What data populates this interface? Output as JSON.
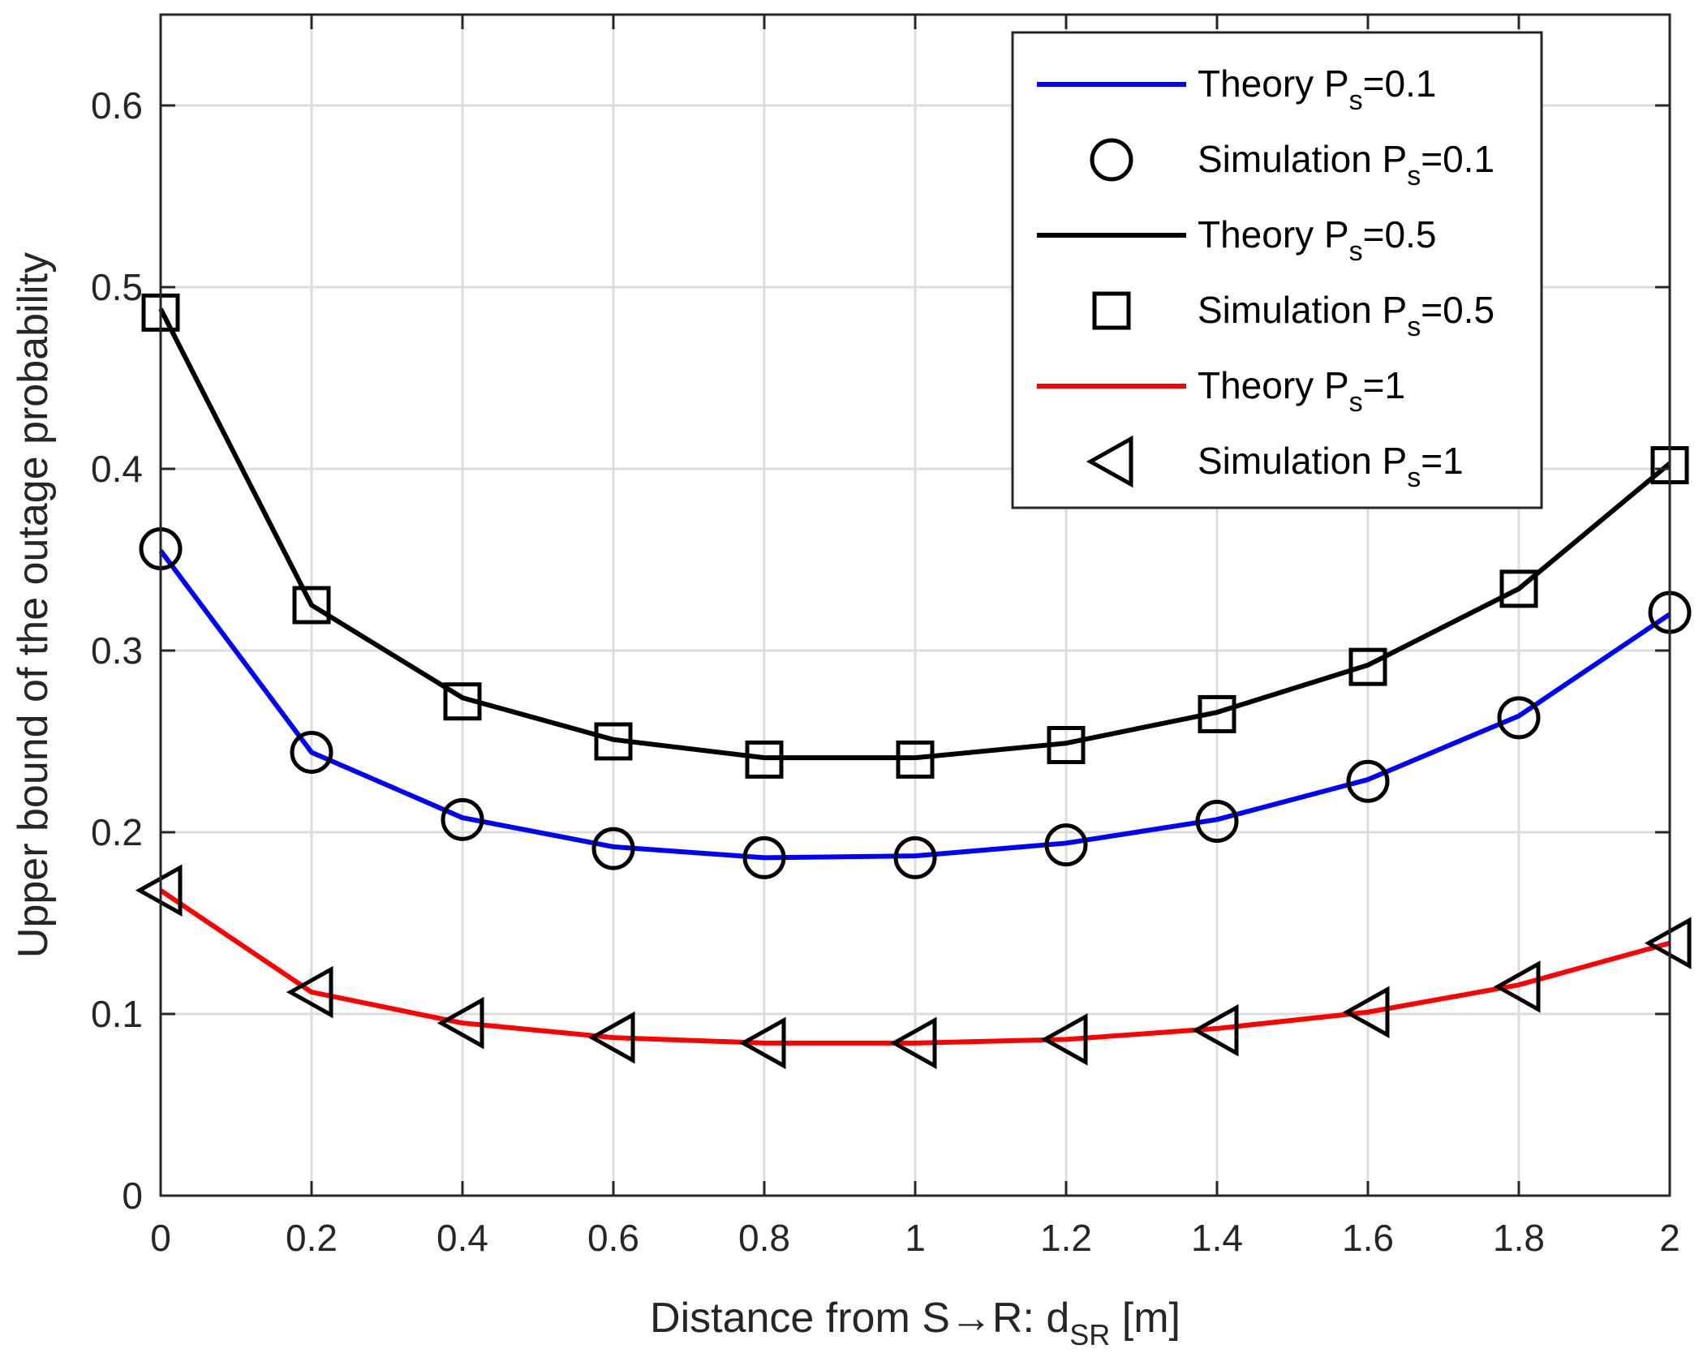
{
  "chart_data": {
    "type": "line",
    "title": "",
    "xlabel": {
      "main": "Distance from S→R: d",
      "sub": "SR",
      "unit": " [m]"
    },
    "ylabel": "Upper bound of the outage probability",
    "xlim": [
      0,
      2
    ],
    "ylim": [
      0,
      0.65
    ],
    "grid": true,
    "legend_position": "top-right",
    "x": [
      0,
      0.2,
      0.4,
      0.6,
      0.8,
      1,
      1.2,
      1.4,
      1.6,
      1.8,
      2
    ],
    "xticks": [
      0,
      0.2,
      0.4,
      0.6,
      0.8,
      1,
      1.2,
      1.4,
      1.6,
      1.8,
      2
    ],
    "xtick_labels": [
      "0",
      "0.2",
      "0.4",
      "0.6",
      "0.8",
      "1",
      "1.2",
      "1.4",
      "1.6",
      "1.8",
      "2"
    ],
    "yticks": [
      0,
      0.1,
      0.2,
      0.3,
      0.4,
      0.5,
      0.6
    ],
    "ytick_labels": [
      "0",
      "0.1",
      "0.2",
      "0.3",
      "0.4",
      "0.5",
      "0.6"
    ],
    "series": [
      {
        "name": "Theory",
        "ps_label": "P",
        "ps_sub": "s",
        "ps_value": "=0.1",
        "kind": "line",
        "color": "#0000ff",
        "marker": "none",
        "values": [
          0.355,
          0.244,
          0.208,
          0.192,
          0.186,
          0.187,
          0.194,
          0.207,
          0.229,
          0.264,
          0.32
        ]
      },
      {
        "name": "Simulation",
        "ps_label": "P",
        "ps_sub": "s",
        "ps_value": "=0.1",
        "kind": "marker",
        "color": "#000000",
        "marker": "circle",
        "values": [
          0.356,
          0.244,
          0.207,
          0.191,
          0.186,
          0.186,
          0.193,
          0.206,
          0.228,
          0.263,
          0.321
        ]
      },
      {
        "name": "Theory",
        "ps_label": "P",
        "ps_sub": "s",
        "ps_value": "=0.5",
        "kind": "line",
        "color": "#000000",
        "marker": "none",
        "values": [
          0.488,
          0.325,
          0.274,
          0.251,
          0.241,
          0.241,
          0.249,
          0.266,
          0.292,
          0.334,
          0.403
        ]
      },
      {
        "name": "Simulation",
        "ps_label": "P",
        "ps_sub": "s",
        "ps_value": "=0.5",
        "kind": "marker",
        "color": "#000000",
        "marker": "square",
        "values": [
          0.486,
          0.325,
          0.272,
          0.25,
          0.24,
          0.24,
          0.248,
          0.265,
          0.291,
          0.334,
          0.402
        ]
      },
      {
        "name": "Theory",
        "ps_label": "P",
        "ps_sub": "s",
        "ps_value": "=1",
        "kind": "line",
        "color": "#ff0000",
        "marker": "none",
        "values": [
          0.168,
          0.112,
          0.095,
          0.087,
          0.084,
          0.084,
          0.086,
          0.092,
          0.101,
          0.116,
          0.139
        ]
      },
      {
        "name": "Simulation",
        "ps_label": "P",
        "ps_sub": "s",
        "ps_value": "=1",
        "kind": "marker",
        "color": "#000000",
        "marker": "triangle-left",
        "values": [
          0.168,
          0.112,
          0.095,
          0.087,
          0.084,
          0.084,
          0.086,
          0.091,
          0.101,
          0.115,
          0.139
        ]
      }
    ]
  }
}
